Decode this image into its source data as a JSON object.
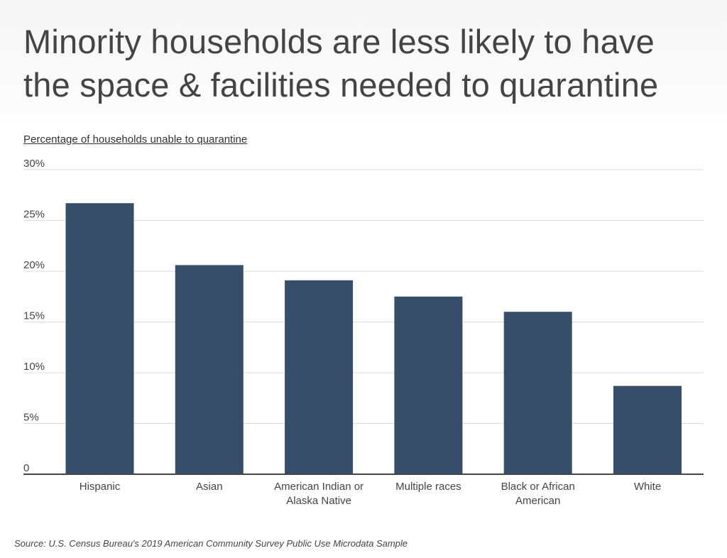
{
  "title_lines": [
    "Minority households are less likely to have",
    "the space & facilities needed to quarantine"
  ],
  "chart_data": {
    "type": "bar",
    "title": "Minority households are less likely to have the space & facilities needed to quarantine",
    "subtitle": "Percentage of households unable to quarantine",
    "categories": [
      [
        "Hispanic"
      ],
      [
        "Asian"
      ],
      [
        "American Indian or",
        "Alaska Native"
      ],
      [
        "Multiple races"
      ],
      [
        "Black or African",
        "American"
      ],
      [
        "White"
      ]
    ],
    "values": [
      26.7,
      20.6,
      19.1,
      17.5,
      16.0,
      8.7
    ],
    "yticks": [
      0,
      5,
      10,
      15,
      20,
      25,
      30
    ],
    "ytick_labels": [
      "0",
      "5%",
      "10%",
      "15%",
      "20%",
      "25%",
      "30%"
    ],
    "ylim": [
      0,
      30
    ],
    "xlabel": "",
    "ylabel": "Percentage of households unable to quarantine",
    "grid": true,
    "bar_color": "#364e69",
    "grid_color": "#dddddd",
    "axis_color": "#444444"
  },
  "source": "Source:  U.S. Census Bureau's 2019 American Community Survey Public Use Microdata Sample"
}
